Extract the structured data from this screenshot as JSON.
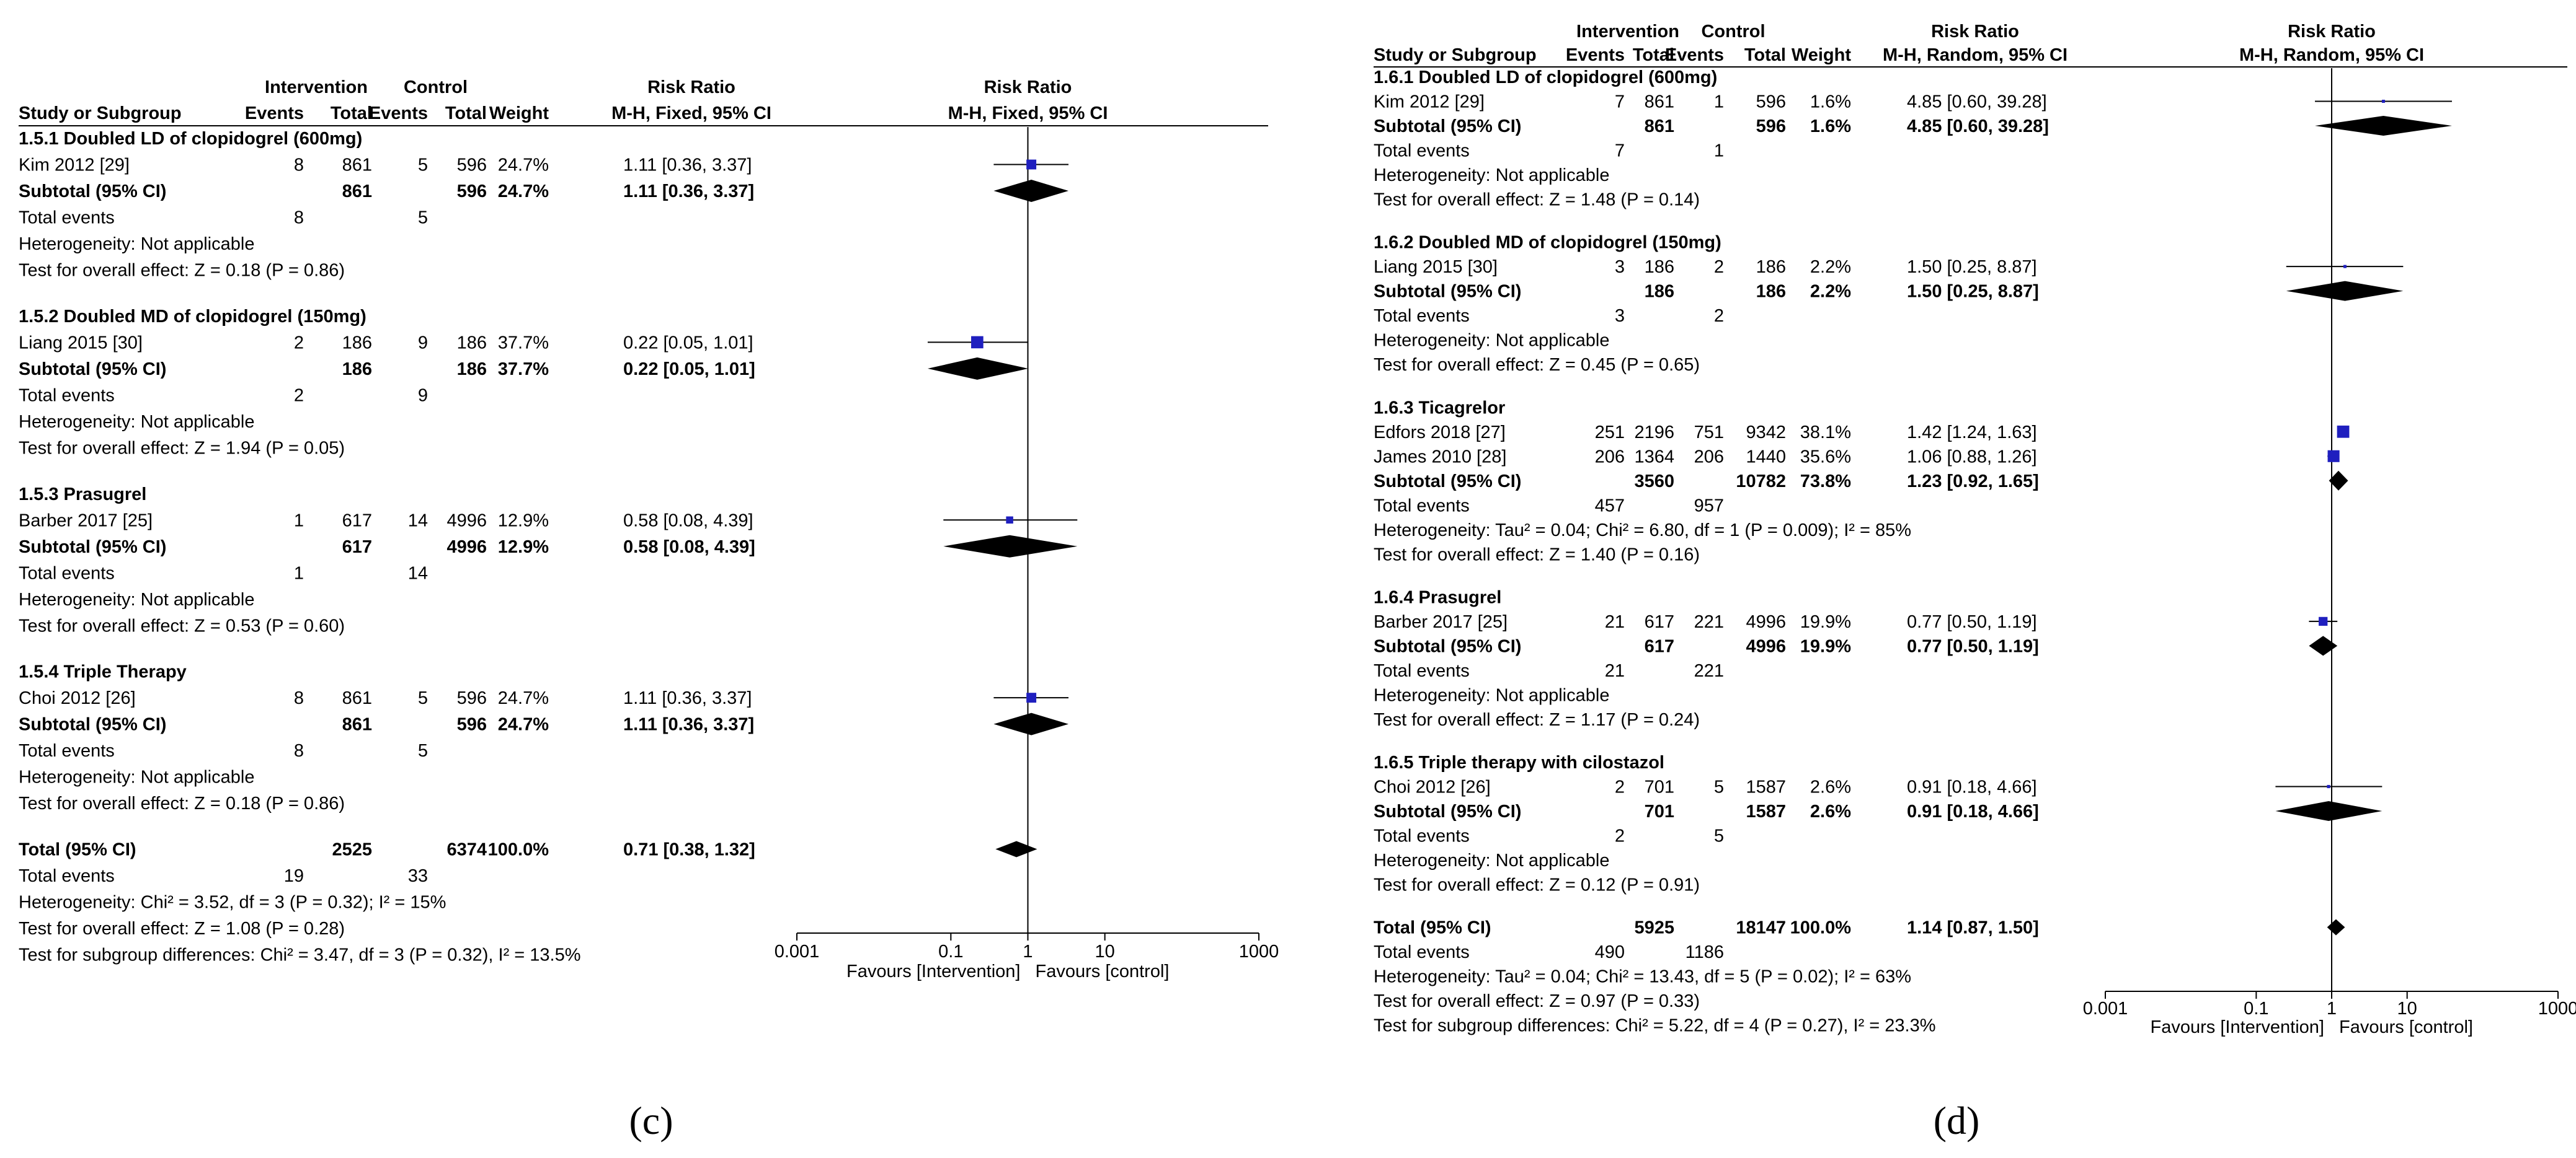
{
  "panels": [
    {
      "id": "c",
      "label": "(c)",
      "model": "Fixed",
      "header": {
        "group_intervention": "Intervention",
        "group_control": "Control",
        "rr_top": "Risk Ratio",
        "rr_sub": "M-H, Fixed, 95% CI",
        "plot_top": "Risk Ratio",
        "plot_sub": "M-H, Fixed, 95% CI",
        "study": "Study or Subgroup",
        "events": "Events",
        "total": "Total",
        "weight": "Weight"
      },
      "subgroups": [
        {
          "title": "1.5.1 Doubled LD of clopidogrel (600mg)",
          "studies": [
            {
              "name": "Kim 2012 [29]",
              "ie": "8",
              "it": "861",
              "ce": "5",
              "ct": "596",
              "w": "24.7%",
              "ci": "1.11 [0.36, 3.37]",
              "rr": 1.11,
              "lo": 0.36,
              "hi": 3.37
            }
          ],
          "subtotal": {
            "label": "Subtotal (95% CI)",
            "it": "861",
            "ct": "596",
            "w": "24.7%",
            "ci": "1.11 [0.36, 3.37]",
            "rr": 1.11,
            "lo": 0.36,
            "hi": 3.37
          },
          "total_events": {
            "label": "Total events",
            "ie": "8",
            "ce": "5"
          },
          "heterogeneity": "Heterogeneity: Not applicable",
          "overall": "Test for overall effect: Z = 0.18 (P = 0.86)"
        },
        {
          "title": "1.5.2 Doubled MD of clopidogrel (150mg)",
          "studies": [
            {
              "name": "Liang 2015 [30]",
              "ie": "2",
              "it": "186",
              "ce": "9",
              "ct": "186",
              "w": "37.7%",
              "ci": "0.22 [0.05, 1.01]",
              "rr": 0.22,
              "lo": 0.05,
              "hi": 1.01
            }
          ],
          "subtotal": {
            "label": "Subtotal (95% CI)",
            "it": "186",
            "ct": "186",
            "w": "37.7%",
            "ci": "0.22 [0.05, 1.01]",
            "rr": 0.22,
            "lo": 0.05,
            "hi": 1.01
          },
          "total_events": {
            "label": "Total events",
            "ie": "2",
            "ce": "9"
          },
          "heterogeneity": "Heterogeneity: Not applicable",
          "overall": "Test for overall effect: Z = 1.94 (P = 0.05)"
        },
        {
          "title": "1.5.3 Prasugrel",
          "studies": [
            {
              "name": "Barber 2017 [25]",
              "ie": "1",
              "it": "617",
              "ce": "14",
              "ct": "4996",
              "w": "12.9%",
              "ci": "0.58 [0.08, 4.39]",
              "rr": 0.58,
              "lo": 0.08,
              "hi": 4.39
            }
          ],
          "subtotal": {
            "label": "Subtotal (95% CI)",
            "it": "617",
            "ct": "4996",
            "w": "12.9%",
            "ci": "0.58 [0.08, 4.39]",
            "rr": 0.58,
            "lo": 0.08,
            "hi": 4.39
          },
          "total_events": {
            "label": "Total events",
            "ie": "1",
            "ce": "14"
          },
          "heterogeneity": "Heterogeneity: Not applicable",
          "overall": "Test for overall effect: Z = 0.53 (P = 0.60)"
        },
        {
          "title": "1.5.4 Triple Therapy",
          "studies": [
            {
              "name": "Choi 2012 [26]",
              "ie": "8",
              "it": "861",
              "ce": "5",
              "ct": "596",
              "w": "24.7%",
              "ci": "1.11 [0.36, 3.37]",
              "rr": 1.11,
              "lo": 0.36,
              "hi": 3.37
            }
          ],
          "subtotal": {
            "label": "Subtotal (95% CI)",
            "it": "861",
            "ct": "596",
            "w": "24.7%",
            "ci": "1.11 [0.36, 3.37]",
            "rr": 1.11,
            "lo": 0.36,
            "hi": 3.37
          },
          "total_events": {
            "label": "Total events",
            "ie": "8",
            "ce": "5"
          },
          "heterogeneity": "Heterogeneity: Not applicable",
          "overall": "Test for overall effect: Z = 0.18 (P = 0.86)"
        }
      ],
      "total": {
        "label": "Total (95% CI)",
        "it": "2525",
        "ct": "6374",
        "w": "100.0%",
        "ci": "0.71 [0.38, 1.32]",
        "rr": 0.71,
        "lo": 0.38,
        "hi": 1.32
      },
      "total_events": {
        "label": "Total events",
        "ie": "19",
        "ce": "33"
      },
      "footer": [
        "Heterogeneity: Chi² = 3.52, df = 3 (P = 0.32); I² = 15%",
        "Test for overall effect: Z = 1.08 (P = 0.28)",
        "Test for subgroup differences: Chi² = 3.47, df = 3 (P = 0.32), I² = 13.5%"
      ],
      "axis": {
        "ticks": [
          "0.001",
          "0.1",
          "1",
          "10",
          "1000"
        ],
        "left": "Favours [Intervention]",
        "right": "Favours [control]"
      }
    },
    {
      "id": "d",
      "label": "(d)",
      "model": "Random",
      "header": {
        "group_intervention": "Intervention",
        "group_control": "Control",
        "rr_top": "Risk Ratio",
        "rr_sub": "M-H, Random, 95% CI",
        "plot_top": "Risk Ratio",
        "plot_sub": "M-H, Random, 95% CI",
        "study": "Study or Subgroup",
        "events": "Events",
        "total": "Total",
        "weight": "Weight"
      },
      "subgroups": [
        {
          "title": "1.6.1 Doubled LD of clopidogrel (600mg)",
          "studies": [
            {
              "name": "Kim 2012 [29]",
              "ie": "7",
              "it": "861",
              "ce": "1",
              "ct": "596",
              "w": "1.6%",
              "ci": "4.85 [0.60, 39.28]",
              "rr": 4.85,
              "lo": 0.6,
              "hi": 39.28
            }
          ],
          "subtotal": {
            "label": "Subtotal (95% CI)",
            "it": "861",
            "ct": "596",
            "w": "1.6%",
            "ci": "4.85 [0.60, 39.28]",
            "rr": 4.85,
            "lo": 0.6,
            "hi": 39.28
          },
          "total_events": {
            "label": "Total events",
            "ie": "7",
            "ce": "1"
          },
          "heterogeneity": "Heterogeneity: Not applicable",
          "overall": "Test for overall effect: Z = 1.48 (P = 0.14)"
        },
        {
          "title": "1.6.2 Doubled MD of clopidogrel (150mg)",
          "studies": [
            {
              "name": "Liang 2015 [30]",
              "ie": "3",
              "it": "186",
              "ce": "2",
              "ct": "186",
              "w": "2.2%",
              "ci": "1.50 [0.25, 8.87]",
              "rr": 1.5,
              "lo": 0.25,
              "hi": 8.87
            }
          ],
          "subtotal": {
            "label": "Subtotal (95% CI)",
            "it": "186",
            "ct": "186",
            "w": "2.2%",
            "ci": "1.50 [0.25, 8.87]",
            "rr": 1.5,
            "lo": 0.25,
            "hi": 8.87
          },
          "total_events": {
            "label": "Total events",
            "ie": "3",
            "ce": "2"
          },
          "heterogeneity": "Heterogeneity: Not applicable",
          "overall": "Test for overall effect: Z = 0.45 (P = 0.65)"
        },
        {
          "title": "1.6.3 Ticagrelor",
          "studies": [
            {
              "name": "Edfors 2018 [27]",
              "ie": "251",
              "it": "2196",
              "ce": "751",
              "ct": "9342",
              "w": "38.1%",
              "ci": "1.42 [1.24, 1.63]",
              "rr": 1.42,
              "lo": 1.24,
              "hi": 1.63
            },
            {
              "name": "James 2010 [28]",
              "ie": "206",
              "it": "1364",
              "ce": "206",
              "ct": "1440",
              "w": "35.6%",
              "ci": "1.06 [0.88, 1.26]",
              "rr": 1.06,
              "lo": 0.88,
              "hi": 1.26
            }
          ],
          "subtotal": {
            "label": "Subtotal (95% CI)",
            "it": "3560",
            "ct": "10782",
            "w": "73.8%",
            "ci": "1.23 [0.92, 1.65]",
            "rr": 1.23,
            "lo": 0.92,
            "hi": 1.65
          },
          "total_events": {
            "label": "Total events",
            "ie": "457",
            "ce": "957"
          },
          "heterogeneity": "Heterogeneity: Tau² = 0.04; Chi² = 6.80, df = 1 (P = 0.009); I² = 85%",
          "overall": "Test for overall effect: Z = 1.40 (P = 0.16)"
        },
        {
          "title": "1.6.4 Prasugrel",
          "studies": [
            {
              "name": "Barber 2017 [25]",
              "ie": "21",
              "it": "617",
              "ce": "221",
              "ct": "4996",
              "w": "19.9%",
              "ci": "0.77 [0.50, 1.19]",
              "rr": 0.77,
              "lo": 0.5,
              "hi": 1.19
            }
          ],
          "subtotal": {
            "label": "Subtotal (95% CI)",
            "it": "617",
            "ct": "4996",
            "w": "19.9%",
            "ci": "0.77 [0.50, 1.19]",
            "rr": 0.77,
            "lo": 0.5,
            "hi": 1.19
          },
          "total_events": {
            "label": "Total events",
            "ie": "21",
            "ce": "221"
          },
          "heterogeneity": "Heterogeneity: Not applicable",
          "overall": "Test for overall effect: Z = 1.17 (P = 0.24)"
        },
        {
          "title": "1.6.5 Triple therapy with cilostazol",
          "studies": [
            {
              "name": "Choi 2012 [26]",
              "ie": "2",
              "it": "701",
              "ce": "5",
              "ct": "1587",
              "w": "2.6%",
              "ci": "0.91 [0.18, 4.66]",
              "rr": 0.91,
              "lo": 0.18,
              "hi": 4.66
            }
          ],
          "subtotal": {
            "label": "Subtotal (95% CI)",
            "it": "701",
            "ct": "1587",
            "w": "2.6%",
            "ci": "0.91 [0.18, 4.66]",
            "rr": 0.91,
            "lo": 0.18,
            "hi": 4.66
          },
          "total_events": {
            "label": "Total events",
            "ie": "2",
            "ce": "5"
          },
          "heterogeneity": "Heterogeneity: Not applicable",
          "overall": "Test for overall effect: Z = 0.12 (P = 0.91)"
        }
      ],
      "total": {
        "label": "Total (95% CI)",
        "it": "5925",
        "ct": "18147",
        "w": "100.0%",
        "ci": "1.14 [0.87, 1.50]",
        "rr": 1.14,
        "lo": 0.87,
        "hi": 1.5
      },
      "total_events": {
        "label": "Total events",
        "ie": "490",
        "ce": "1186"
      },
      "footer": [
        "Heterogeneity: Tau² = 0.04; Chi² = 13.43, df = 5 (P = 0.02); I² = 63%",
        "Test for overall effect: Z = 0.97 (P = 0.33)",
        "Test for subgroup differences: Chi² = 5.22, df = 4 (P = 0.27), I² = 23.3%"
      ],
      "axis": {
        "ticks": [
          "0.001",
          "0.1",
          "1",
          "10",
          "1000"
        ],
        "left": "Favours [Intervention]",
        "right": "Favours [control]"
      }
    }
  ],
  "chart_data": [
    {
      "type": "forest",
      "title": "(c) Risk Ratio, M-H, Fixed, 95% CI",
      "xscale": "log",
      "xlim": [
        0.001,
        1000
      ],
      "xlabel_left": "Favours [Intervention]",
      "xlabel_right": "Favours [control]",
      "series": [
        {
          "name": "Kim 2012 [29]",
          "rr": 1.11,
          "ci": [
            0.36,
            3.37
          ],
          "weight": 24.7
        },
        {
          "name": "1.5.1 Subtotal",
          "rr": 1.11,
          "ci": [
            0.36,
            3.37
          ],
          "weight": 24.7
        },
        {
          "name": "Liang 2015 [30]",
          "rr": 0.22,
          "ci": [
            0.05,
            1.01
          ],
          "weight": 37.7
        },
        {
          "name": "1.5.2 Subtotal",
          "rr": 0.22,
          "ci": [
            0.05,
            1.01
          ],
          "weight": 37.7
        },
        {
          "name": "Barber 2017 [25]",
          "rr": 0.58,
          "ci": [
            0.08,
            4.39
          ],
          "weight": 12.9
        },
        {
          "name": "1.5.3 Subtotal",
          "rr": 0.58,
          "ci": [
            0.08,
            4.39
          ],
          "weight": 12.9
        },
        {
          "name": "Choi 2012 [26]",
          "rr": 1.11,
          "ci": [
            0.36,
            3.37
          ],
          "weight": 24.7
        },
        {
          "name": "1.5.4 Subtotal",
          "rr": 1.11,
          "ci": [
            0.36,
            3.37
          ],
          "weight": 24.7
        },
        {
          "name": "Total (95% CI)",
          "rr": 0.71,
          "ci": [
            0.38,
            1.32
          ],
          "weight": 100.0
        }
      ]
    },
    {
      "type": "forest",
      "title": "(d) Risk Ratio, M-H, Random, 95% CI",
      "xscale": "log",
      "xlim": [
        0.001,
        1000
      ],
      "xlabel_left": "Favours [Intervention]",
      "xlabel_right": "Favours [control]",
      "series": [
        {
          "name": "Kim 2012 [29]",
          "rr": 4.85,
          "ci": [
            0.6,
            39.28
          ],
          "weight": 1.6
        },
        {
          "name": "1.6.1 Subtotal",
          "rr": 4.85,
          "ci": [
            0.6,
            39.28
          ],
          "weight": 1.6
        },
        {
          "name": "Liang 2015 [30]",
          "rr": 1.5,
          "ci": [
            0.25,
            8.87
          ],
          "weight": 2.2
        },
        {
          "name": "1.6.2 Subtotal",
          "rr": 1.5,
          "ci": [
            0.25,
            8.87
          ],
          "weight": 2.2
        },
        {
          "name": "Edfors 2018 [27]",
          "rr": 1.42,
          "ci": [
            1.24,
            1.63
          ],
          "weight": 38.1
        },
        {
          "name": "James 2010 [28]",
          "rr": 1.06,
          "ci": [
            0.88,
            1.26
          ],
          "weight": 35.6
        },
        {
          "name": "1.6.3 Subtotal",
          "rr": 1.23,
          "ci": [
            0.92,
            1.65
          ],
          "weight": 73.8
        },
        {
          "name": "Barber 2017 [25]",
          "rr": 0.77,
          "ci": [
            0.5,
            1.19
          ],
          "weight": 19.9
        },
        {
          "name": "1.6.4 Subtotal",
          "rr": 0.77,
          "ci": [
            0.5,
            1.19
          ],
          "weight": 19.9
        },
        {
          "name": "Choi 2012 [26]",
          "rr": 0.91,
          "ci": [
            0.18,
            4.66
          ],
          "weight": 2.6
        },
        {
          "name": "1.6.5 Subtotal",
          "rr": 0.91,
          "ci": [
            0.18,
            4.66
          ],
          "weight": 2.6
        },
        {
          "name": "Total (95% CI)",
          "rr": 1.14,
          "ci": [
            0.87,
            1.5
          ],
          "weight": 100.0
        }
      ]
    }
  ]
}
